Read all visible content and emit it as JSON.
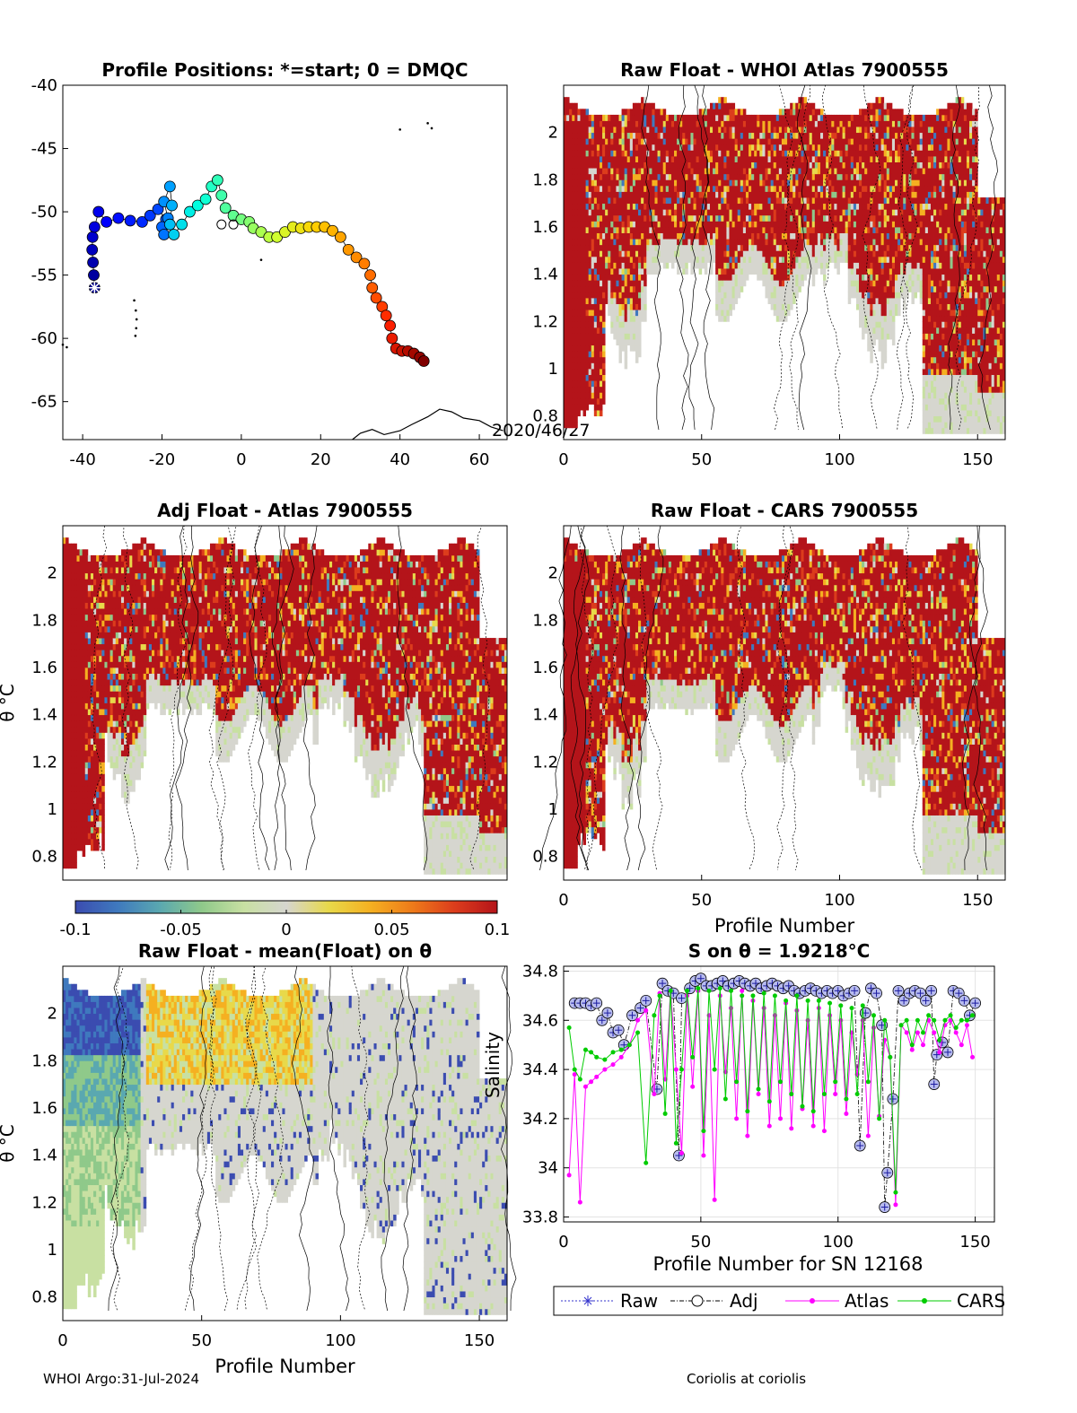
{
  "figure": {
    "footer_left": "WHOI Argo:31-Jul-2024",
    "footer_right": "Coriolis at coriolis"
  },
  "colorbar": {
    "ticks": [
      "-0.1",
      "-0.05",
      "0",
      "0.05",
      "0.1"
    ],
    "colors": [
      "#3b4cb0",
      "#3f79be",
      "#5aa8b0",
      "#8fc98a",
      "#c8e0a2",
      "#d6d6cf",
      "#e8d94a",
      "#f5b021",
      "#ee7a1a",
      "#dc3c1c",
      "#b4141a"
    ]
  },
  "chart_data": [
    {
      "id": "positions",
      "type": "scatter",
      "title": "Profile Positions: *=start; 0 = DMQC",
      "xlim": [
        -45,
        67
      ],
      "ylim": [
        -68,
        -40
      ],
      "xticks": [
        "-40",
        "-20",
        "0",
        "20",
        "40",
        "60"
      ],
      "yticks": [
        "-40",
        "-45",
        "-50",
        "-55",
        "-60",
        "-65"
      ],
      "annotation": "2020/46/27",
      "track": [
        [
          -37,
          -56
        ],
        [
          -37.2,
          -55
        ],
        [
          -37.4,
          -54
        ],
        [
          -37.6,
          -53
        ],
        [
          -37.5,
          -52
        ],
        [
          -37,
          -51.2
        ],
        [
          -36,
          -50
        ],
        [
          -34,
          -50.8
        ],
        [
          -31,
          -50.5
        ],
        [
          -28,
          -50.7
        ],
        [
          -25,
          -50.8
        ],
        [
          -23,
          -50.3
        ],
        [
          -21,
          -49.8
        ],
        [
          -19,
          -50.6
        ],
        [
          -20,
          -51.2
        ],
        [
          -19.5,
          -51.8
        ],
        [
          -18.5,
          -50.5
        ],
        [
          -19.5,
          -49.2
        ],
        [
          -18,
          -48
        ],
        [
          -17.5,
          -49.5
        ],
        [
          -18,
          -51
        ],
        [
          -17,
          -51.8
        ],
        [
          -15,
          -51
        ],
        [
          -13,
          -50
        ],
        [
          -11,
          -49.5
        ],
        [
          -9,
          -49
        ],
        [
          -7.5,
          -48
        ],
        [
          -6,
          -47.5
        ],
        [
          -5,
          -48.7
        ],
        [
          -4,
          -49.7
        ],
        [
          -2,
          -50.3
        ],
        [
          0,
          -50.6
        ],
        [
          2,
          -50.8
        ],
        [
          3,
          -51.3
        ],
        [
          5,
          -51.6
        ],
        [
          7,
          -52
        ],
        [
          9,
          -52
        ],
        [
          11,
          -51.6
        ],
        [
          13,
          -51.2
        ],
        [
          15,
          -51.3
        ],
        [
          17,
          -51.2
        ],
        [
          19,
          -51.2
        ],
        [
          21,
          -51.2
        ],
        [
          23,
          -51.5
        ],
        [
          25,
          -52
        ],
        [
          27,
          -53
        ],
        [
          29,
          -53.6
        ],
        [
          31,
          -54.1
        ],
        [
          32.5,
          -55
        ],
        [
          33,
          -56
        ],
        [
          34,
          -56.8
        ],
        [
          35.5,
          -57.5
        ],
        [
          36.5,
          -58.2
        ],
        [
          37.5,
          -59
        ],
        [
          38,
          -60
        ],
        [
          39,
          -60.8
        ],
        [
          40.5,
          -61
        ],
        [
          42,
          -61
        ],
        [
          43.5,
          -61.2
        ],
        [
          45,
          -61.5
        ],
        [
          46,
          -61.8
        ]
      ],
      "dmqc_marks": [
        [
          -37,
          -56
        ],
        [
          -5,
          -51
        ],
        [
          -2,
          -51
        ]
      ]
    },
    {
      "id": "raw-whoi",
      "type": "heatmap",
      "title": "Raw Float - WHOI Atlas  7900555",
      "xlim": [
        0,
        160
      ],
      "ylim": [
        0.7,
        2.2
      ],
      "xticks": [
        "0",
        "50",
        "100",
        "150"
      ],
      "yticks": [
        "0.8",
        "1",
        "1.2",
        "1.4",
        "1.6",
        "1.8",
        "2"
      ],
      "ylabel": "",
      "xlabel": ""
    },
    {
      "id": "adj-atlas",
      "type": "heatmap",
      "title": "Adj Float - Atlas  7900555",
      "xlim": [
        0,
        160
      ],
      "ylim": [
        0.7,
        2.2
      ],
      "xticks": [],
      "yticks": [
        "0.8",
        "1",
        "1.2",
        "1.4",
        "1.6",
        "1.8",
        "2"
      ],
      "ylabel": "θ °C",
      "xlabel": ""
    },
    {
      "id": "raw-cars",
      "type": "heatmap",
      "title": "Raw Float - CARS  7900555",
      "xlim": [
        0,
        160
      ],
      "ylim": [
        0.7,
        2.2
      ],
      "xticks": [
        "0",
        "50",
        "100",
        "150"
      ],
      "yticks": [
        "0.8",
        "1",
        "1.2",
        "1.4",
        "1.6",
        "1.8",
        "2"
      ],
      "ylabel": "",
      "xlabel": "Profile Number"
    },
    {
      "id": "raw-mean",
      "type": "heatmap",
      "title": "Raw Float - mean(Float) on θ",
      "xlim": [
        0,
        160
      ],
      "ylim": [
        0.7,
        2.2
      ],
      "xticks": [
        "0",
        "50",
        "100",
        "150"
      ],
      "yticks": [
        "0.8",
        "1",
        "1.2",
        "1.4",
        "1.6",
        "1.8",
        "2"
      ],
      "ylabel": "θ °C",
      "xlabel": "Profile Number"
    },
    {
      "id": "salinity",
      "type": "line",
      "title": "S on θ = 1.9218°C",
      "xlim": [
        0,
        157
      ],
      "ylim": [
        33.78,
        34.82
      ],
      "xticks": [
        "0",
        "50",
        "100",
        "150"
      ],
      "yticks": [
        "33.8",
        "34",
        "34.2",
        "34.4",
        "34.6",
        "34.8"
      ],
      "ylabel": "Salinity",
      "xlabel": "Profile Number for SN 12168",
      "legend": [
        "Raw",
        "Adj",
        "Atlas",
        "CARS"
      ],
      "series": [
        {
          "name": "Adj",
          "color": "#000080",
          "x": [
            4,
            6,
            8,
            10,
            12,
            14,
            16,
            18,
            20,
            22,
            25,
            28,
            30,
            34,
            36,
            38,
            40,
            42,
            43,
            46,
            48,
            50,
            52,
            54,
            56,
            58,
            60,
            62,
            64,
            66,
            68,
            70,
            72,
            74,
            76,
            78,
            80,
            82,
            84,
            86,
            88,
            90,
            92,
            94,
            96,
            98,
            100,
            102,
            104,
            106,
            108,
            110,
            112,
            114,
            116,
            117,
            118,
            120,
            122,
            124,
            126,
            128,
            130,
            132,
            134,
            135,
            136,
            138,
            140,
            142,
            144,
            146,
            148,
            150
          ],
          "y": [
            34.67,
            34.67,
            34.67,
            34.66,
            34.67,
            34.6,
            34.63,
            34.55,
            34.56,
            34.5,
            34.62,
            34.65,
            34.68,
            34.32,
            34.75,
            34.72,
            34.71,
            34.05,
            34.69,
            34.73,
            34.76,
            34.77,
            34.74,
            34.74,
            34.75,
            34.76,
            34.74,
            34.75,
            34.76,
            34.75,
            34.74,
            34.75,
            34.73,
            34.74,
            34.75,
            34.74,
            34.73,
            34.74,
            34.72,
            34.71,
            34.72,
            34.73,
            34.72,
            34.71,
            34.72,
            34.71,
            34.72,
            34.7,
            34.71,
            34.72,
            34.09,
            34.63,
            34.73,
            34.71,
            34.58,
            33.84,
            33.98,
            34.28,
            34.72,
            34.68,
            34.71,
            34.72,
            34.71,
            34.68,
            34.72,
            34.34,
            34.46,
            34.51,
            34.47,
            34.72,
            34.71,
            34.68,
            34.62,
            34.67
          ]
        },
        {
          "name": "Atlas",
          "color": "#ff00ff",
          "x": [
            2,
            4,
            6,
            8,
            10,
            12,
            15,
            18,
            21,
            24,
            27,
            30,
            33,
            35,
            37,
            39,
            41,
            43,
            45,
            47,
            49,
            51,
            53,
            55,
            57,
            59,
            61,
            63,
            65,
            67,
            69,
            71,
            73,
            75,
            77,
            79,
            81,
            83,
            85,
            87,
            89,
            91,
            93,
            95,
            97,
            99,
            101,
            103,
            105,
            107,
            109,
            111,
            113,
            115,
            117,
            119,
            121,
            123,
            125,
            127,
            129,
            131,
            133,
            135,
            137,
            139,
            141,
            143,
            145,
            147,
            149
          ],
          "y": [
            33.97,
            34.38,
            33.86,
            34.33,
            34.35,
            34.37,
            34.4,
            34.42,
            34.45,
            34.5,
            34.6,
            34.64,
            34.3,
            34.71,
            34.36,
            34.72,
            34.4,
            34.06,
            34.7,
            34.33,
            34.72,
            34.05,
            34.62,
            33.87,
            34.7,
            34.39,
            34.65,
            34.2,
            34.72,
            34.13,
            34.68,
            34.3,
            34.65,
            34.17,
            34.62,
            34.2,
            34.67,
            34.16,
            34.64,
            34.24,
            34.6,
            34.17,
            34.65,
            34.15,
            34.62,
            34.3,
            34.6,
            34.22,
            34.55,
            34.38,
            34.6,
            34.13,
            34.57,
            34.21,
            34.52,
            34.45,
            33.85,
            34.58,
            34.55,
            34.48,
            34.55,
            34.5,
            34.6,
            34.55,
            34.47,
            34.58,
            34.6,
            34.55,
            34.5,
            34.58,
            34.45
          ]
        },
        {
          "name": "CARS",
          "color": "#00cc00",
          "x": [
            2,
            4,
            6,
            8,
            10,
            12,
            15,
            18,
            21,
            24,
            27,
            30,
            33,
            35,
            37,
            39,
            41,
            43,
            45,
            47,
            49,
            51,
            53,
            55,
            57,
            59,
            61,
            63,
            65,
            67,
            69,
            71,
            73,
            75,
            77,
            79,
            81,
            83,
            85,
            87,
            89,
            91,
            93,
            95,
            97,
            99,
            101,
            103,
            105,
            107,
            109,
            111,
            113,
            115,
            117,
            119,
            121,
            123,
            125,
            127,
            129,
            131,
            133,
            135,
            137,
            139,
            141,
            143,
            145,
            147,
            149
          ],
          "y": [
            34.57,
            34.4,
            34.36,
            34.48,
            34.47,
            34.45,
            34.44,
            34.47,
            34.48,
            34.5,
            34.55,
            34.02,
            34.62,
            34.7,
            34.22,
            34.72,
            34.1,
            34.4,
            34.72,
            34.45,
            34.73,
            34.15,
            34.72,
            34.4,
            34.73,
            34.28,
            34.72,
            34.35,
            34.7,
            34.23,
            34.7,
            34.32,
            34.71,
            34.27,
            34.7,
            34.35,
            34.68,
            34.3,
            34.7,
            34.25,
            34.68,
            34.23,
            34.68,
            34.3,
            34.67,
            34.35,
            34.66,
            34.28,
            34.65,
            34.3,
            34.66,
            34.35,
            34.62,
            34.2,
            34.6,
            34.45,
            33.9,
            34.58,
            34.6,
            34.5,
            34.6,
            34.55,
            34.62,
            34.6,
            34.52,
            34.6,
            34.62,
            34.57,
            34.6,
            34.6,
            34.62
          ]
        }
      ]
    }
  ]
}
